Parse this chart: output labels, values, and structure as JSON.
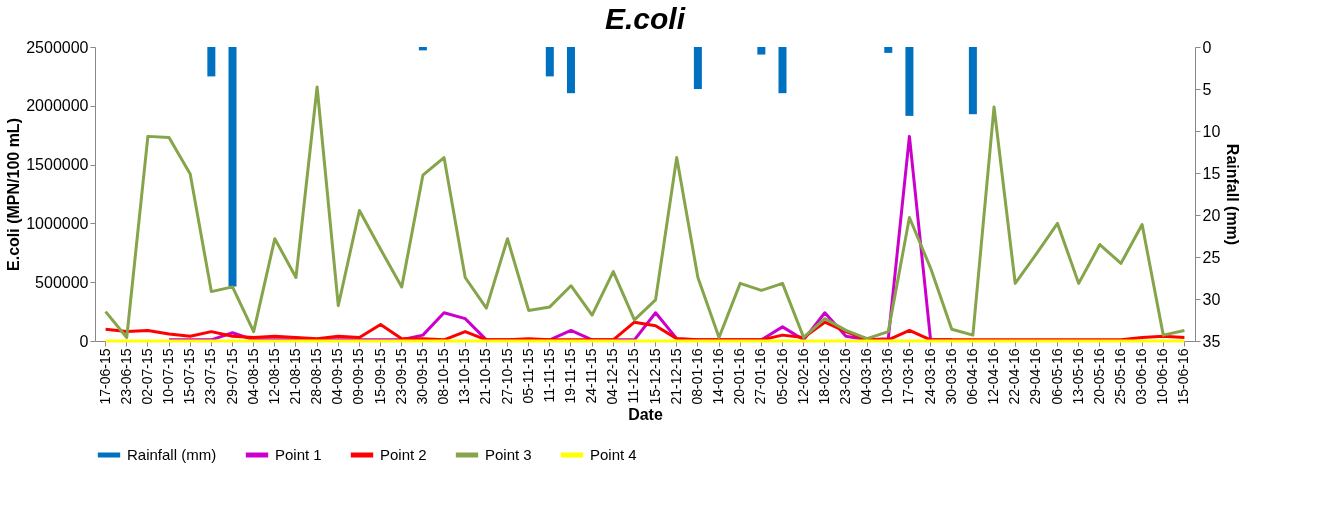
{
  "chart_data": {
    "type": "line",
    "title": "E.coli",
    "xlabel": "Date",
    "ylabel": "E.coli (MPN/100 mL)",
    "y2label": "Rainfall (mm)",
    "categories": [
      "17-06-15",
      "23-06-15",
      "02-07-15",
      "10-07-15",
      "15-07-15",
      "23-07-15",
      "29-07-15",
      "04-08-15",
      "12-08-15",
      "21-08-15",
      "28-08-15",
      "04-09-15",
      "09-09-15",
      "15-09-15",
      "23-09-15",
      "30-09-15",
      "08-10-15",
      "13-10-15",
      "21-10-15",
      "27-10-15",
      "05-11-15",
      "11-11-15",
      "19-11-15",
      "24-11-15",
      "04-12-15",
      "11-12-15",
      "15-12-15",
      "21-12-15",
      "08-01-16",
      "14-01-16",
      "20-01-16",
      "27-01-16",
      "05-02-16",
      "12-02-16",
      "18-02-16",
      "23-02-16",
      "04-03-16",
      "10-03-16",
      "17-03-16",
      "24-03-16",
      "30-03-16",
      "06-04-16",
      "12-04-16",
      "22-04-16",
      "29-04-16",
      "06-05-16",
      "13-05-16",
      "20-05-16",
      "25-05-16",
      "03-06-16",
      "10-06-16",
      "15-06-16"
    ],
    "series": [
      {
        "name": "Rainfall (mm)",
        "type": "bar",
        "axis": "y2",
        "color": "#0070c0",
        "values": [
          0,
          0,
          0,
          0,
          0,
          3.5,
          28.5,
          0,
          0,
          0,
          0,
          0,
          0,
          0,
          0,
          0.4,
          0,
          0,
          0,
          0,
          0,
          3.5,
          5.5,
          0,
          0,
          0,
          0,
          0,
          5.0,
          0,
          0,
          0.9,
          5.5,
          0,
          0,
          0,
          0,
          0.7,
          8.2,
          0,
          0,
          8.0,
          0,
          0,
          0,
          0,
          0,
          0,
          0,
          0,
          0,
          0
        ]
      },
      {
        "name": "Point 1",
        "color": "#cc00cc",
        "values": [
          null,
          null,
          null,
          10000,
          10000,
          10000,
          70000,
          10000,
          10000,
          10000,
          10000,
          10000,
          10000,
          10000,
          10000,
          50000,
          240000,
          190000,
          10000,
          10000,
          10000,
          10000,
          90000,
          10000,
          10000,
          10000,
          240000,
          20000,
          10000,
          10000,
          10000,
          10000,
          120000,
          10000,
          240000,
          40000,
          10000,
          20000,
          1740000,
          10000,
          10000,
          null,
          null,
          null,
          null,
          null,
          null,
          null,
          null,
          null,
          null,
          null
        ]
      },
      {
        "name": "Point 2",
        "color": "#ff0000",
        "values": [
          100000,
          80000,
          90000,
          60000,
          40000,
          80000,
          40000,
          30000,
          40000,
          30000,
          20000,
          40000,
          30000,
          140000,
          20000,
          20000,
          10000,
          80000,
          10000,
          10000,
          20000,
          10000,
          10000,
          10000,
          10000,
          160000,
          130000,
          20000,
          10000,
          10000,
          10000,
          10000,
          50000,
          30000,
          160000,
          80000,
          10000,
          10000,
          90000,
          10000,
          10000,
          10000,
          10000,
          10000,
          10000,
          10000,
          10000,
          10000,
          10000,
          30000,
          40000,
          30000
        ]
      },
      {
        "name": "Point 3",
        "color": "#86a44a",
        "values": [
          250000,
          30000,
          1740000,
          1730000,
          1420000,
          420000,
          460000,
          80000,
          870000,
          540000,
          2160000,
          300000,
          1110000,
          780000,
          460000,
          1410000,
          1560000,
          540000,
          280000,
          870000,
          260000,
          290000,
          470000,
          220000,
          590000,
          180000,
          350000,
          1560000,
          540000,
          30000,
          490000,
          430000,
          490000,
          30000,
          190000,
          90000,
          20000,
          80000,
          1050000,
          620000,
          100000,
          50000,
          1990000,
          490000,
          740000,
          1000000,
          490000,
          820000,
          660000,
          990000,
          50000,
          90000
        ]
      },
      {
        "name": "Point 4",
        "color": "#ffff00",
        "values": [
          0,
          0,
          0,
          0,
          0,
          0,
          0,
          0,
          0,
          0,
          0,
          0,
          0,
          0,
          0,
          0,
          0,
          0,
          0,
          0,
          0,
          0,
          0,
          0,
          0,
          0,
          0,
          0,
          0,
          0,
          0,
          0,
          0,
          0,
          0,
          0,
          0,
          0,
          0,
          0,
          0,
          0,
          0,
          0,
          0,
          0,
          0,
          0,
          0,
          0,
          0,
          0
        ]
      }
    ],
    "ylim": [
      0,
      2500000
    ],
    "yticks": [
      0,
      500000,
      1000000,
      1500000,
      2000000,
      2500000
    ],
    "y2lim": [
      35,
      0
    ],
    "y2ticks": [
      0,
      5,
      10,
      15,
      20,
      25,
      30,
      35
    ],
    "grid": false,
    "legend": "bottom",
    "marker": "none",
    "line_style": "solid"
  }
}
